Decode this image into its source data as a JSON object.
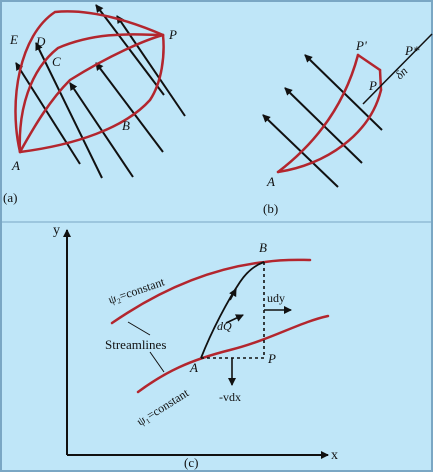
{
  "colors": {
    "background": "#bfe6f8",
    "streamline": "#b3262e",
    "ink": "#111111",
    "border": "#7aa7c4"
  },
  "panel_a": {
    "caption": "(a)",
    "labels": {
      "E": "E",
      "D": "D",
      "C": "C",
      "P": "P",
      "B": "B",
      "A": "A"
    }
  },
  "panel_b": {
    "caption": "(b)",
    "labels": {
      "P_prime": "P'",
      "P_dstar": "P*",
      "P": "P",
      "dn": "δn",
      "A": "A"
    }
  },
  "panel_c": {
    "caption": "(c)",
    "y_axis": "y",
    "x_axis": "x",
    "psi_upper": "ψ₂=constant",
    "psi_lower": "ψ₁=constant",
    "streamlines": "Streamlines",
    "B": "B",
    "A": "A",
    "P": "P",
    "udy": "udy",
    "dQ": "dQ",
    "vdx": "-vdx"
  }
}
